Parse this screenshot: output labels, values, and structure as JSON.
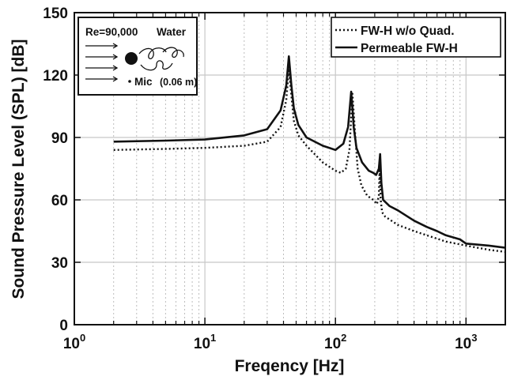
{
  "chart_data": {
    "type": "line",
    "xscale": "log",
    "xlabel": "Freqency [Hz]",
    "ylabel": "Sound Pressure Level (SPL) [dB]",
    "xlim": [
      1,
      2000
    ],
    "ylim": [
      0,
      150
    ],
    "yticks": [
      0,
      30,
      60,
      90,
      120,
      150
    ],
    "x_tick_labels": [
      {
        "base": "10",
        "exp": "0"
      },
      {
        "base": "10",
        "exp": "1"
      },
      {
        "base": "10",
        "exp": "2"
      },
      {
        "base": "10",
        "exp": "3"
      }
    ],
    "grid": "on",
    "legend_position": "top-right",
    "series": [
      {
        "name": "FW-H w/o Quad.",
        "style": "dotted",
        "x": [
          2,
          5,
          10,
          20,
          30,
          38,
          42,
          44,
          46,
          48,
          52,
          60,
          80,
          100,
          110,
          120,
          128,
          135,
          140,
          148,
          158,
          175,
          195,
          208,
          215,
          218,
          222,
          228,
          240,
          300,
          400,
          500,
          700,
          1000,
          1500,
          2000
        ],
        "y": [
          84,
          84.5,
          85,
          86,
          88,
          95,
          108,
          123,
          110,
          98,
          91,
          86,
          78,
          74,
          73,
          75,
          84,
          111,
          96,
          75,
          67,
          62,
          60,
          58,
          62,
          76,
          60,
          54,
          52,
          48,
          45,
          43,
          40,
          38,
          36,
          35
        ]
      },
      {
        "name": "Permeable FW-H",
        "style": "solid",
        "x": [
          2,
          5,
          10,
          20,
          30,
          38,
          42,
          44,
          46,
          48,
          52,
          60,
          80,
          90,
          100,
          115,
          125,
          132,
          135,
          138,
          145,
          160,
          180,
          195,
          205,
          215,
          220,
          225,
          232,
          260,
          300,
          400,
          500,
          600,
          700,
          900,
          1000,
          1500,
          2000
        ],
        "y": [
          88,
          88.5,
          89,
          91,
          94,
          103,
          115,
          129,
          115,
          104,
          96,
          90,
          86,
          85,
          84,
          87,
          95,
          112,
          104,
          95,
          85,
          78,
          74,
          73,
          72,
          75,
          82,
          68,
          60,
          57,
          55,
          50,
          47,
          45,
          43,
          41,
          39,
          38,
          37
        ]
      }
    ],
    "annotation": {
      "title": "Re=90,000",
      "medium": "Water",
      "mic": "Mic",
      "mic_distance": "(0.06 m)"
    }
  }
}
